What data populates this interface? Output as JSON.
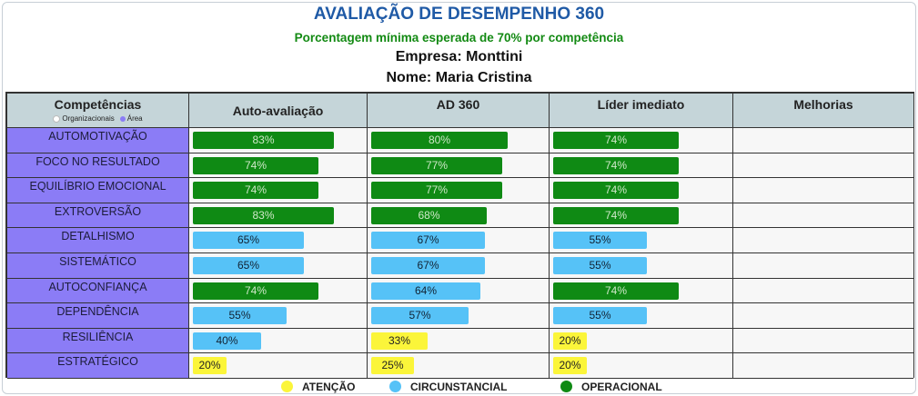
{
  "header": {
    "title": "AVALIAÇÃO DE DESEMPENHO 360",
    "subtitle": "Porcentagem mínima esperada de 70% por competência",
    "company": "Empresa: Monttini",
    "person": "Nome: Maria Cristina"
  },
  "table": {
    "columns": [
      "Competências",
      "Auto-avaliação",
      "AD 360",
      "Líder imediato",
      "Melhorias"
    ],
    "mini_legend": {
      "organizational": "Organizacionais",
      "area": "Área"
    },
    "rows": [
      {
        "competency": "AUTOMOTIVAÇÃO",
        "self": "83%",
        "ad360": "80%",
        "leader": "74%",
        "self_v": 83,
        "ad360_v": 80,
        "leader_v": 74
      },
      {
        "competency": "FOCO NO RESULTADO",
        "self": "74%",
        "ad360": "77%",
        "leader": "74%",
        "self_v": 74,
        "ad360_v": 77,
        "leader_v": 74
      },
      {
        "competency": "EQUILÍBRIO EMOCIONAL",
        "self": "74%",
        "ad360": "77%",
        "leader": "74%",
        "self_v": 74,
        "ad360_v": 77,
        "leader_v": 74
      },
      {
        "competency": "EXTROVERSÃO",
        "self": "83%",
        "ad360": "68%",
        "leader": "74%",
        "self_v": 83,
        "ad360_v": 68,
        "leader_v": 74
      },
      {
        "competency": "DETALHISMO",
        "self": "65%",
        "ad360": "67%",
        "leader": "55%",
        "self_v": 65,
        "ad360_v": 67,
        "leader_v": 55
      },
      {
        "competency": "SISTEMÁTICO",
        "self": "65%",
        "ad360": "67%",
        "leader": "55%",
        "self_v": 65,
        "ad360_v": 67,
        "leader_v": 55
      },
      {
        "competency": "AUTOCONFIANÇA",
        "self": "74%",
        "ad360": "64%",
        "leader": "74%",
        "self_v": 74,
        "ad360_v": 64,
        "leader_v": 74
      },
      {
        "competency": "DEPENDÊNCIA",
        "self": "55%",
        "ad360": "57%",
        "leader": "55%",
        "self_v": 55,
        "ad360_v": 57,
        "leader_v": 55
      },
      {
        "competency": "RESILIÊNCIA",
        "self": "40%",
        "ad360": "33%",
        "leader": "20%",
        "self_v": 40,
        "ad360_v": 33,
        "leader_v": 20
      },
      {
        "competency": "ESTRATÉGICO",
        "self": "20%",
        "ad360": "25%",
        "leader": "20%",
        "self_v": 20,
        "ad360_v": 25,
        "leader_v": 20
      }
    ]
  },
  "legend": {
    "attention": "ATENÇÃO",
    "circumstantial": "CIRCUNSTANCIAL",
    "operational": "OPERACIONAL"
  },
  "colors": {
    "operational": "#0f8a14",
    "circumstantial": "#56c2f7",
    "attention": "#fbf53a",
    "competency_bg": "#8b7cf6",
    "header_bg": "#c5d5d9",
    "title": "#1f5aa6",
    "subtitle": "#138a13"
  }
}
